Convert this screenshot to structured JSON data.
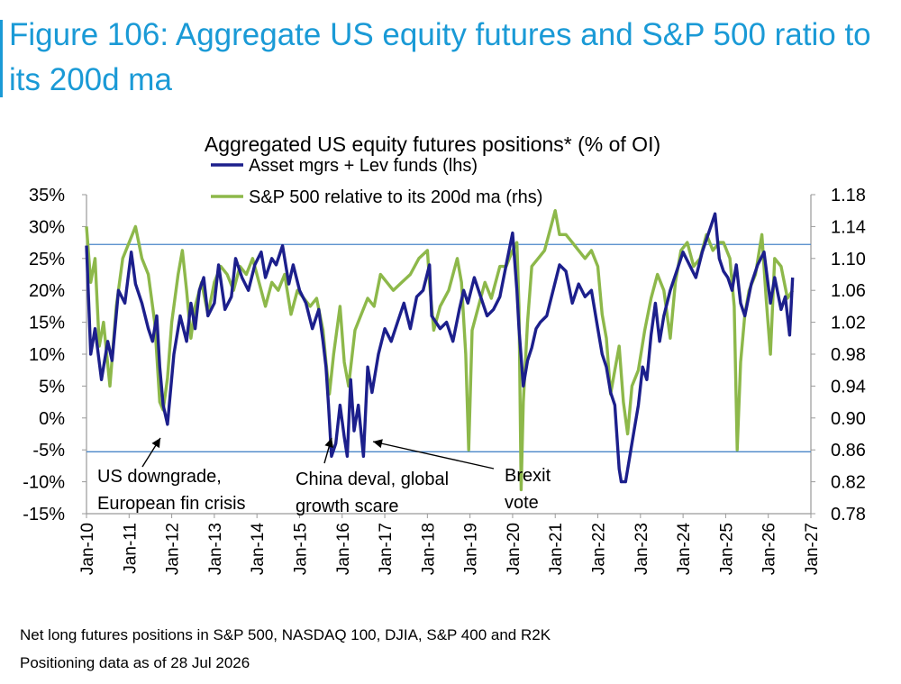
{
  "figure": {
    "title": "Figure 106: Aggregate US equity futures and S&P 500 ratio to its 200d ma",
    "footnote1": "Net long futures positions in S&P 500, NASDAQ 100, DJIA, S&P 400 and R2K",
    "footnote2": "Positioning data as of 28 Jul 2026"
  },
  "colors": {
    "title": "#1a9ad6",
    "lhs_series": "#1c1f8c",
    "rhs_series": "#8db84a",
    "ref_line": "#4a86c8"
  },
  "chart_data": {
    "type": "line",
    "title": "Aggregated US equity futures positions* (% of OI)",
    "x_ticks": [
      "Jan-10",
      "Jan-11",
      "Jan-12",
      "Jan-13",
      "Jan-14",
      "Jan-15",
      "Jan-16",
      "Jan-17",
      "Jan-18",
      "Jan-19",
      "Jan-20",
      "Jan-21",
      "Jan-22",
      "Jan-23",
      "Jan-24",
      "Jan-25",
      "Jan-26",
      "Jan-27"
    ],
    "y_left": {
      "min": -15,
      "max": 35,
      "step": 5,
      "ticks": [
        "-15%",
        "-10%",
        "-5%",
        "0%",
        "5%",
        "10%",
        "15%",
        "20%",
        "25%",
        "30%",
        "35%"
      ]
    },
    "y_right": {
      "min": 0.78,
      "max": 1.18,
      "step": 0.04,
      "ticks": [
        "0.78",
        "0.82",
        "0.86",
        "0.90",
        "0.94",
        "0.98",
        "1.02",
        "1.06",
        "1.10",
        "1.14",
        "1.18"
      ]
    },
    "legend_position": "top-center",
    "reference_lines_lhs": [
      27.2,
      -5.3
    ],
    "series": [
      {
        "name": "Asset mgrs + Lev funds (lhs)",
        "axis": "left",
        "x": [
          2010.0,
          2010.1,
          2010.2,
          2010.35,
          2010.5,
          2010.6,
          2010.75,
          2010.9,
          2011.05,
          2011.15,
          2011.3,
          2011.45,
          2011.55,
          2011.65,
          2011.72,
          2011.8,
          2011.9,
          2012.05,
          2012.2,
          2012.35,
          2012.45,
          2012.55,
          2012.65,
          2012.75,
          2012.85,
          2013.0,
          2013.1,
          2013.25,
          2013.4,
          2013.5,
          2013.65,
          2013.8,
          2013.95,
          2014.1,
          2014.2,
          2014.35,
          2014.45,
          2014.6,
          2014.75,
          2014.85,
          2015.0,
          2015.15,
          2015.3,
          2015.45,
          2015.55,
          2015.62,
          2015.68,
          2015.75,
          2015.85,
          2015.95,
          2016.05,
          2016.12,
          2016.2,
          2016.28,
          2016.38,
          2016.5,
          2016.6,
          2016.7,
          2016.85,
          2017.0,
          2017.15,
          2017.3,
          2017.45,
          2017.6,
          2017.75,
          2017.9,
          2018.05,
          2018.1,
          2018.2,
          2018.3,
          2018.45,
          2018.6,
          2018.75,
          2018.85,
          2018.95,
          2019.1,
          2019.25,
          2019.4,
          2019.55,
          2019.7,
          2019.85,
          2020.0,
          2020.1,
          2020.15,
          2020.25,
          2020.35,
          2020.45,
          2020.55,
          2020.65,
          2020.8,
          2020.95,
          2021.1,
          2021.25,
          2021.4,
          2021.55,
          2021.7,
          2021.85,
          2022.0,
          2022.1,
          2022.2,
          2022.3,
          2022.4,
          2022.5,
          2022.55,
          2022.65,
          2022.75,
          2022.85,
          2022.95,
          2023.05,
          2023.15,
          2023.25,
          2023.35,
          2023.45,
          2023.55,
          2023.7,
          2023.85,
          2024.0,
          2024.15,
          2024.3,
          2024.45,
          2024.55,
          2024.65,
          2024.75,
          2024.85,
          2024.95,
          2025.05,
          2025.15,
          2025.25,
          2025.35,
          2025.45,
          2025.6,
          2025.75,
          2025.9,
          2026.05,
          2026.15,
          2026.3,
          2026.4,
          2026.5,
          2026.57
        ],
        "values": [
          27,
          10,
          14,
          6,
          12,
          9,
          20,
          18,
          26,
          21,
          18,
          14,
          12,
          16,
          8,
          2,
          -1,
          10,
          16,
          12,
          18,
          14,
          20,
          22,
          16,
          18,
          24,
          17,
          19,
          25,
          22,
          20,
          24,
          26,
          22,
          25,
          24,
          27,
          21,
          24,
          20,
          18,
          14,
          17,
          12,
          8,
          2,
          -6,
          -4,
          2,
          -3,
          -6,
          6,
          -2,
          2,
          -6,
          8,
          4,
          10,
          14,
          12,
          15,
          18,
          14,
          19,
          20,
          24,
          16,
          15,
          14,
          15,
          12,
          17,
          20,
          18,
          22,
          19,
          16,
          17,
          19,
          24,
          29,
          20,
          14,
          5,
          9,
          11,
          14,
          15,
          16,
          20,
          24,
          23,
          18,
          21,
          19,
          20,
          14,
          10,
          8,
          4,
          2,
          -8,
          -10,
          -10,
          -6,
          -2,
          2,
          8,
          6,
          13,
          18,
          12,
          16,
          20,
          23,
          26,
          24,
          22,
          26,
          28,
          30,
          32,
          25,
          23,
          22,
          20,
          24,
          18,
          16,
          21,
          24,
          26,
          18,
          22,
          17,
          19,
          13,
          22
        ]
      },
      {
        "name": "S&P 500 relative to its 200d ma (rhs)",
        "axis": "right",
        "x": [
          2010.0,
          2010.1,
          2010.2,
          2010.3,
          2010.4,
          2010.55,
          2010.7,
          2010.85,
          2011.0,
          2011.15,
          2011.3,
          2011.45,
          2011.6,
          2011.72,
          2011.8,
          2011.9,
          2012.0,
          2012.15,
          2012.25,
          2012.35,
          2012.45,
          2012.55,
          2012.7,
          2012.85,
          2013.0,
          2013.15,
          2013.3,
          2013.45,
          2013.6,
          2013.75,
          2013.9,
          2014.05,
          2014.2,
          2014.35,
          2014.5,
          2014.65,
          2014.8,
          2014.95,
          2015.1,
          2015.25,
          2015.4,
          2015.55,
          2015.62,
          2015.7,
          2015.8,
          2015.95,
          2016.05,
          2016.15,
          2016.3,
          2016.45,
          2016.6,
          2016.75,
          2016.9,
          2017.05,
          2017.2,
          2017.4,
          2017.6,
          2017.8,
          2018.0,
          2018.05,
          2018.15,
          2018.3,
          2018.5,
          2018.7,
          2018.8,
          2018.9,
          2018.97,
          2019.05,
          2019.2,
          2019.35,
          2019.5,
          2019.7,
          2019.85,
          2020.0,
          2020.1,
          2020.15,
          2020.2,
          2020.25,
          2020.35,
          2020.45,
          2020.6,
          2020.75,
          2020.9,
          2021.0,
          2021.1,
          2021.25,
          2021.4,
          2021.55,
          2021.7,
          2021.85,
          2022.0,
          2022.1,
          2022.2,
          2022.3,
          2022.4,
          2022.5,
          2022.6,
          2022.7,
          2022.8,
          2022.95,
          2023.1,
          2023.25,
          2023.4,
          2023.55,
          2023.7,
          2023.82,
          2023.95,
          2024.1,
          2024.25,
          2024.4,
          2024.55,
          2024.7,
          2024.85,
          2024.95,
          2025.1,
          2025.2,
          2025.27,
          2025.35,
          2025.45,
          2025.55,
          2025.7,
          2025.85,
          2025.95,
          2026.05,
          2026.15,
          2026.3,
          2026.45,
          2026.57
        ],
        "values": [
          1.14,
          1.07,
          1.1,
          0.99,
          1.02,
          0.94,
          1.04,
          1.1,
          1.12,
          1.14,
          1.1,
          1.08,
          1.02,
          0.92,
          0.91,
          0.95,
          1.02,
          1.08,
          1.11,
          1.06,
          1.0,
          1.04,
          1.07,
          1.03,
          1.07,
          1.09,
          1.08,
          1.06,
          1.09,
          1.08,
          1.1,
          1.07,
          1.04,
          1.07,
          1.06,
          1.08,
          1.03,
          1.06,
          1.05,
          1.04,
          1.05,
          1.01,
          0.97,
          0.93,
          0.98,
          1.04,
          0.97,
          0.94,
          1.01,
          1.03,
          1.05,
          1.04,
          1.08,
          1.07,
          1.06,
          1.07,
          1.08,
          1.1,
          1.11,
          1.07,
          1.01,
          1.04,
          1.06,
          1.1,
          1.07,
          0.98,
          0.86,
          1.01,
          1.04,
          1.07,
          1.05,
          1.09,
          1.09,
          1.11,
          1.12,
          1.04,
          0.81,
          0.92,
          1.02,
          1.09,
          1.1,
          1.11,
          1.14,
          1.16,
          1.13,
          1.13,
          1.12,
          1.11,
          1.1,
          1.11,
          1.09,
          1.03,
          1.0,
          0.93,
          0.96,
          0.99,
          0.92,
          0.88,
          0.94,
          0.96,
          1.01,
          1.05,
          1.08,
          1.06,
          1.0,
          1.07,
          1.11,
          1.12,
          1.09,
          1.1,
          1.13,
          1.11,
          1.12,
          1.12,
          1.1,
          1.04,
          0.86,
          0.97,
          1.03,
          1.06,
          1.08,
          1.13,
          1.05,
          0.98,
          1.1,
          1.09,
          1.05,
          1.06
        ]
      }
    ],
    "annotations": [
      {
        "text": [
          "US downgrade,",
          "European fin crisis"
        ]
      },
      {
        "text": [
          "China deval, global",
          "growth scare"
        ]
      },
      {
        "text": [
          "Brexit",
          "vote"
        ]
      }
    ]
  }
}
